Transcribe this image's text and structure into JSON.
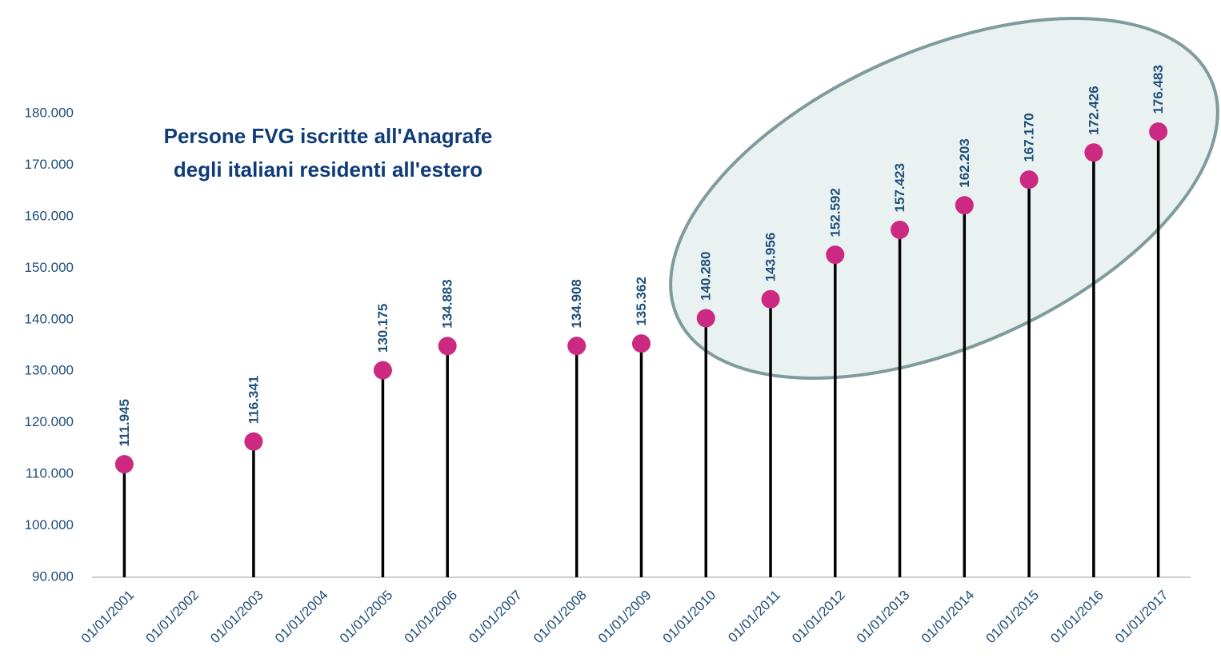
{
  "chart_data": {
    "type": "lollipop",
    "title": [
      "Persone FVG iscritte all'Anagrafe",
      "degli italiani residenti all'estero"
    ],
    "categories": [
      "01/01/2001",
      "01/01/2002",
      "01/01/2003",
      "01/01/2004",
      "01/01/2005",
      "01/01/2006",
      "01/01/2007",
      "01/01/2008",
      "01/01/2009",
      "01/01/2010",
      "01/01/2011",
      "01/01/2012",
      "01/01/2013",
      "01/01/2014",
      "01/01/2015",
      "01/01/2016",
      "01/01/2017"
    ],
    "values": [
      111945,
      null,
      116341,
      null,
      130175,
      134883,
      null,
      134908,
      135362,
      140280,
      143956,
      152592,
      157423,
      162203,
      167170,
      172426,
      176483
    ],
    "value_labels": [
      "111.945",
      null,
      "116.341",
      null,
      "130.175",
      "134.883",
      null,
      "134.908",
      "135.362",
      "140.280",
      "143.956",
      "152.592",
      "157.423",
      "162.203",
      "167.170",
      "172.426",
      "176.483"
    ],
    "color": "#cc2a82",
    "stem_color": "#000000",
    "ylim": [
      90000,
      180000
    ],
    "yticks": [
      {
        "value": 90000,
        "label": "90.000"
      },
      {
        "value": 100000,
        "label": "100.000"
      },
      {
        "value": 110000,
        "label": "110.000"
      },
      {
        "value": 120000,
        "label": "120.000"
      },
      {
        "value": 130000,
        "label": "130.000"
      },
      {
        "value": 140000,
        "label": "140.000"
      },
      {
        "value": 150000,
        "label": "150.000"
      },
      {
        "value": 160000,
        "label": "160.000"
      },
      {
        "value": 170000,
        "label": "170.000"
      },
      {
        "value": 180000,
        "label": "180.000"
      }
    ],
    "grid": false
  }
}
